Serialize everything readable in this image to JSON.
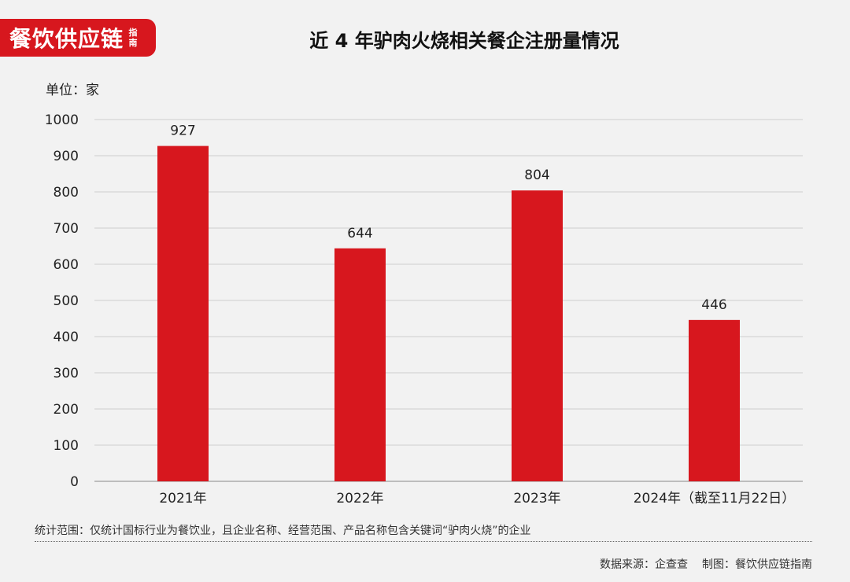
{
  "logo": {
    "text": "餐饮供应链",
    "sub": "指南"
  },
  "unit_label": "单位：家",
  "chart_data": {
    "type": "bar",
    "title": "近 4 年驴肉火烧相关餐企注册量情况",
    "categories": [
      "2021年",
      "2022年",
      "2023年",
      "2024年（截至11月22日）"
    ],
    "values": [
      927,
      644,
      804,
      446
    ],
    "ylim": [
      0,
      1000
    ],
    "yticks": [
      0,
      100,
      200,
      300,
      400,
      500,
      600,
      700,
      800,
      900,
      1000
    ],
    "xlabel": "",
    "ylabel": "",
    "grid": true,
    "bar_color": "#d7171e"
  },
  "footnote": "统计范围：仅统计国标行业为餐饮业，且企业名称、经营范围、产品名称包含关键词“驴肉火烧”的企业",
  "source": {
    "data_source": "数据来源：企查查",
    "made_by": "制图：餐饮供应链指南"
  }
}
